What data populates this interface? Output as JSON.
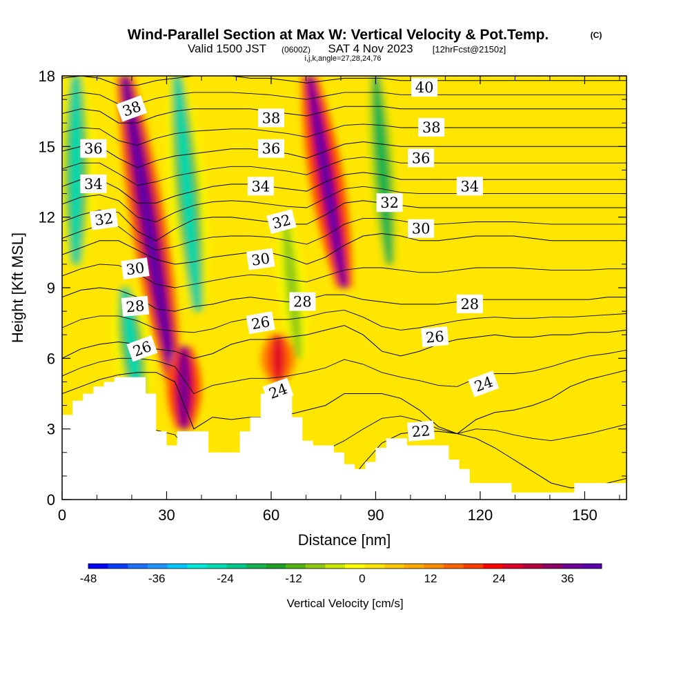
{
  "chart_data": {
    "type": "heatmap",
    "title": "Wind-Parallel Section at Max W: Vertical Velocity & Pot.Temp.",
    "title_mark": "(C)",
    "subtitle_valid": "Valid 1500 JST",
    "subtitle_utc": "(0600Z)",
    "subtitle_date": "SAT 4 Nov 2023",
    "subtitle_fcst": "[12hrFcst@2150z]",
    "subtitle_params": "i,j,k,angle=27,28,24,76",
    "xlabel": "Distance [nm]",
    "ylabel": "Height [Kft MSL]",
    "xlim": [
      0,
      162
    ],
    "ylim": [
      0,
      18
    ],
    "x_ticks": [
      0,
      30,
      60,
      90,
      120,
      150
    ],
    "y_ticks": [
      0,
      3,
      6,
      9,
      12,
      15,
      18
    ],
    "colorbar": {
      "label": "Vertical Velocity [cm/s]",
      "min": -48,
      "max": 42,
      "step": 3,
      "tick_values": [
        -48,
        -36,
        -24,
        -12,
        0,
        12,
        24,
        36
      ],
      "colors": [
        "#0000ff",
        "#0a3cff",
        "#1e6eff",
        "#1e96ff",
        "#00c8ff",
        "#00e6dc",
        "#00dcb4",
        "#00c88c",
        "#14b450",
        "#1ea028",
        "#50b414",
        "#8cc814",
        "#c8e600",
        "#ffff00",
        "#ffe600",
        "#ffc800",
        "#ffaa00",
        "#ff8c00",
        "#ff6400",
        "#ff3c00",
        "#ff0000",
        "#dc0028",
        "#b4003c",
        "#8c0064",
        "#6e0096",
        "#5a00aa"
      ]
    },
    "vertical_velocity_features": [
      {
        "name": "updraft",
        "x_center": 25,
        "bottom_kft": 5,
        "top_kft": 18,
        "lean_x": -7,
        "max_cms": 30
      },
      {
        "name": "downdraft",
        "x_center": 20,
        "bottom_kft": 4,
        "top_kft": 9,
        "lean_x": -2,
        "max_cms": -30
      },
      {
        "name": "downdraft",
        "x_center": 36,
        "bottom_kft": 8,
        "top_kft": 18,
        "lean_x": -3,
        "max_cms": -30
      },
      {
        "name": "updraft",
        "x_center": 35,
        "bottom_kft": 3,
        "top_kft": 6.5,
        "lean_x": 0,
        "max_cms": 24
      },
      {
        "name": "downdraft",
        "x_center": 4,
        "bottom_kft": 10,
        "top_kft": 18,
        "lean_x": 0,
        "max_cms": -30
      },
      {
        "name": "updraft",
        "x_center": 76,
        "bottom_kft": 9,
        "top_kft": 18,
        "lean_x": -5,
        "max_cms": 27
      },
      {
        "name": "downdraft",
        "x_center": 66,
        "bottom_kft": 6,
        "top_kft": 12,
        "lean_x": -2,
        "max_cms": -15
      },
      {
        "name": "downdraft",
        "x_center": 92,
        "bottom_kft": 10,
        "top_kft": 18,
        "lean_x": -2,
        "max_cms": -24
      },
      {
        "name": "updraft",
        "x_center": 62,
        "bottom_kft": 5,
        "top_kft": 7,
        "lean_x": 0,
        "max_cms": 15
      }
    ],
    "terrain_kft": {
      "x": [
        0,
        3,
        6,
        9,
        12,
        15,
        18,
        21,
        24,
        27,
        30,
        33,
        36,
        39,
        42,
        45,
        48,
        51,
        54,
        57,
        60,
        63,
        66,
        69,
        72,
        75,
        78,
        81,
        84,
        87,
        90,
        93,
        96,
        99,
        102,
        105,
        108,
        111,
        114,
        117,
        120,
        123,
        126,
        129,
        132,
        135,
        138,
        141,
        144,
        147,
        150,
        153,
        156,
        159,
        162
      ],
      "h": [
        3.6,
        4.2,
        4.5,
        4.8,
        5.0,
        5.2,
        5.2,
        5.2,
        4.5,
        2.9,
        2.3,
        2.9,
        2.9,
        2.9,
        2.0,
        2.0,
        2.0,
        2.9,
        3.5,
        4.5,
        4.5,
        4.5,
        3.5,
        2.5,
        2.3,
        2.3,
        2.0,
        1.5,
        1.3,
        1.6,
        2.2,
        2.6,
        2.6,
        2.3,
        2.3,
        2.3,
        2.3,
        1.7,
        1.3,
        0.7,
        0.7,
        0.7,
        0.7,
        0.3,
        0.3,
        0.3,
        0.3,
        0.3,
        0.3,
        0.7,
        0.7,
        0.7,
        0.7,
        0.7,
        0.7
      ]
    },
    "theta_contours": [
      {
        "value": "22",
        "label_at": [
          111,
          2.9
        ],
        "label_angle": -5,
        "y": [
          0.9,
          0.7,
          0.6,
          0.6,
          0.6,
          0.5,
          0.5,
          0.4,
          0.3,
          0.3,
          0.3,
          0.3,
          0.3,
          0.2,
          0.2,
          0.5,
          1.5,
          2.4,
          2.8,
          2.9,
          2.9,
          2.8,
          2.6,
          2.2,
          1.7,
          1.2,
          0.7,
          0.5,
          0.5,
          0.7,
          0.9
        ]
      },
      {
        "value": "24",
        "label_at": [
          124,
          4.9
        ],
        "label_angle": -20,
        "y": [
          4.5,
          4.8,
          5.1,
          5.3,
          5.4,
          5.4,
          5.0,
          3.0,
          3.5,
          3.4,
          3.5,
          3.5,
          3.6,
          3.8,
          4.0,
          4.5,
          4.5,
          4.5,
          4.3,
          3.8,
          3.1,
          2.8,
          3.4,
          3.7,
          3.8,
          4.0,
          4.3,
          4.8,
          5.1,
          5.3,
          5.5
        ]
      },
      {
        "value": "26",
        "label_at": [
          66,
          7.6
        ],
        "label_angle": -18,
        "y": [
          6.0,
          6.4,
          6.6,
          6.7,
          6.6,
          6.4,
          6.3,
          6.0,
          6.2,
          6.6,
          6.8,
          6.8,
          6.9,
          7.0,
          7.2,
          7.4,
          7.0,
          6.3,
          6.1,
          6.3,
          6.6,
          6.8,
          6.9,
          7.0,
          6.9,
          6.9,
          7.0,
          7.0,
          7.1,
          7.1,
          7.2
        ]
      },
      {
        "value": "28",
        "label_at": [
          66,
          8.5
        ],
        "label_angle": 0,
        "y": [
          8.6,
          8.9,
          9.0,
          8.9,
          8.6,
          8.1,
          8.0,
          8.2,
          8.3,
          8.5,
          8.6,
          8.5,
          8.4,
          8.5,
          8.7,
          8.7,
          8.5,
          8.4,
          8.3,
          8.3,
          8.3,
          8.4,
          8.5,
          8.5,
          8.5,
          8.5,
          8.5,
          8.5,
          8.5,
          8.6,
          8.6
        ]
      },
      {
        "value": "30",
        "label_at": [
          84,
          11.4
        ],
        "label_angle": 0,
        "y": [
          10.4,
          10.7,
          11.0,
          11.0,
          10.6,
          10.2,
          10.0,
          10.1,
          10.3,
          10.4,
          10.5,
          10.5,
          10.3,
          10.0,
          10.3,
          10.8,
          11.2,
          11.3,
          11.2,
          11.0,
          11.0,
          11.1,
          11.2,
          11.2,
          11.2,
          11.1,
          11.0,
          11.0,
          11.0,
          11.0,
          11.0
        ]
      },
      {
        "value": "32",
        "label_at": [
          24,
          11.8
        ],
        "label_angle": -8,
        "y": [
          11.8,
          12.1,
          12.3,
          12.2,
          11.4,
          11.0,
          11.5,
          11.9,
          12.0,
          12.0,
          11.9,
          11.8,
          11.7,
          11.7,
          12.1,
          12.6,
          12.7,
          12.6,
          12.5,
          12.4,
          12.4,
          12.4,
          12.4,
          12.4,
          12.4,
          12.4,
          12.4,
          12.4,
          12.4,
          12.4,
          12.4
        ]
      },
      {
        "value": "34",
        "label_at": [
          26,
          13.2
        ],
        "label_angle": 0,
        "y": [
          13.3,
          13.6,
          13.6,
          13.2,
          12.6,
          12.6,
          12.9,
          13.1,
          13.3,
          13.4,
          13.4,
          13.3,
          13.2,
          13.1,
          13.5,
          13.8,
          13.9,
          13.8,
          13.6,
          13.6,
          13.6,
          13.6,
          13.6,
          13.6,
          13.6,
          13.6,
          13.6,
          13.6,
          13.6,
          13.6,
          13.6
        ]
      },
      {
        "value": "36",
        "label_at": [
          28,
          14.8
        ],
        "label_angle": 0,
        "y": [
          14.8,
          15.0,
          15.0,
          14.5,
          14.1,
          14.4,
          14.6,
          14.7,
          14.8,
          14.9,
          14.9,
          14.8,
          14.7,
          14.5,
          14.8,
          15.1,
          15.2,
          15.1,
          15.0,
          15.0,
          15.0,
          15.0,
          15.0,
          15.0,
          15.0,
          15.0,
          15.0,
          15.0,
          15.0,
          15.0,
          15.0
        ]
      },
      {
        "value": "38",
        "label_at": [
          20,
          16.6
        ],
        "label_angle": -20,
        "y": [
          16.4,
          16.6,
          16.5,
          16.0,
          16.0,
          16.3,
          16.5,
          16.6,
          16.6,
          16.6,
          16.6,
          16.5,
          16.4,
          16.3,
          16.5,
          16.7,
          16.7,
          16.7,
          16.6,
          16.6,
          16.6,
          16.6,
          16.6,
          16.6,
          16.6,
          16.6,
          16.6,
          16.6,
          16.6,
          16.6,
          16.6
        ]
      },
      {
        "value": "40",
        "label_at": [
          104,
          17.5
        ],
        "label_angle": 0,
        "y": [
          17.9,
          18.0,
          17.9,
          17.6,
          17.6,
          17.8,
          17.9,
          18.0,
          18.0,
          18.0,
          17.9,
          17.9,
          17.8,
          17.7,
          17.8,
          17.9,
          17.9,
          17.9,
          17.8,
          17.8,
          17.8,
          17.8,
          17.8,
          17.8,
          17.8,
          17.8,
          17.8,
          17.8,
          17.8,
          17.8,
          17.8
        ]
      }
    ],
    "theta_label_positions": [
      {
        "value": "40",
        "x": 104,
        "y": 17.5,
        "angle": 0
      },
      {
        "value": "38",
        "x": 20,
        "y": 16.6,
        "angle": -20
      },
      {
        "value": "38",
        "x": 60,
        "y": 16.2,
        "angle": 0
      },
      {
        "value": "38",
        "x": 106,
        "y": 15.8,
        "angle": 0
      },
      {
        "value": "36",
        "x": 9,
        "y": 14.9,
        "angle": 0
      },
      {
        "value": "36",
        "x": 60,
        "y": 14.9,
        "angle": 0
      },
      {
        "value": "36",
        "x": 103,
        "y": 14.5,
        "angle": 0
      },
      {
        "value": "34",
        "x": 9,
        "y": 13.4,
        "angle": 0
      },
      {
        "value": "34",
        "x": 57,
        "y": 13.3,
        "angle": 0
      },
      {
        "value": "34",
        "x": 117,
        "y": 13.3,
        "angle": 0
      },
      {
        "value": "32",
        "x": 12,
        "y": 11.9,
        "angle": -8
      },
      {
        "value": "32",
        "x": 63,
        "y": 11.8,
        "angle": -15
      },
      {
        "value": "32",
        "x": 94,
        "y": 12.6,
        "angle": 0
      },
      {
        "value": "30",
        "x": 21,
        "y": 9.8,
        "angle": -8
      },
      {
        "value": "30",
        "x": 57,
        "y": 10.2,
        "angle": -8
      },
      {
        "value": "30",
        "x": 103,
        "y": 11.5,
        "angle": 0
      },
      {
        "value": "28",
        "x": 21,
        "y": 8.2,
        "angle": -5
      },
      {
        "value": "28",
        "x": 69,
        "y": 8.4,
        "angle": 0
      },
      {
        "value": "28",
        "x": 117,
        "y": 8.3,
        "angle": 0
      },
      {
        "value": "26",
        "x": 23,
        "y": 6.4,
        "angle": -20
      },
      {
        "value": "26",
        "x": 57,
        "y": 7.5,
        "angle": -10
      },
      {
        "value": "26",
        "x": 107,
        "y": 6.9,
        "angle": -5
      },
      {
        "value": "24",
        "x": 62,
        "y": 4.6,
        "angle": -20
      },
      {
        "value": "24",
        "x": 121,
        "y": 4.9,
        "angle": -20
      },
      {
        "value": "22",
        "x": 103,
        "y": 2.9,
        "angle": -5
      }
    ]
  }
}
